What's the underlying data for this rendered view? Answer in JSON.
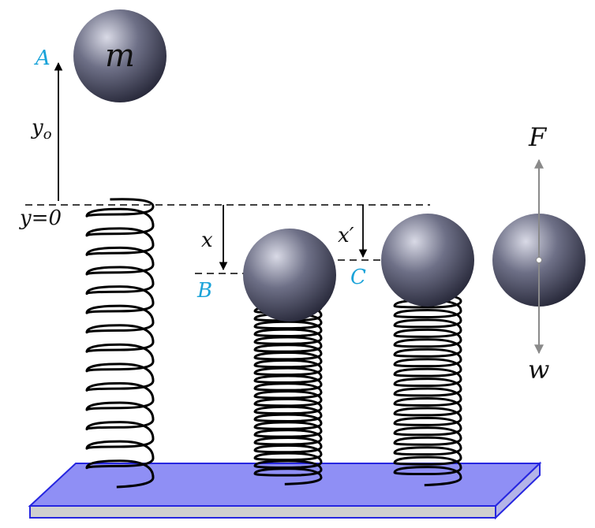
{
  "labels": {
    "mass": "m",
    "point_a": "A",
    "point_b": "B",
    "point_c": "C",
    "height": "y",
    "height_subscript": "o",
    "origin": "y=0",
    "compression_x": "x",
    "compression_x_prime": "x′",
    "force_up": "F",
    "force_down": "w"
  },
  "colors": {
    "label_accent": "#1aa3d9",
    "platform_fill": "#8f8ff5",
    "platform_stroke": "#2626e0",
    "sphere_light": "#d9dae6",
    "sphere_mid": "#6e7087",
    "sphere_dark": "#262738",
    "spring": "#000000",
    "force_arrow": "#8a8a8a"
  }
}
